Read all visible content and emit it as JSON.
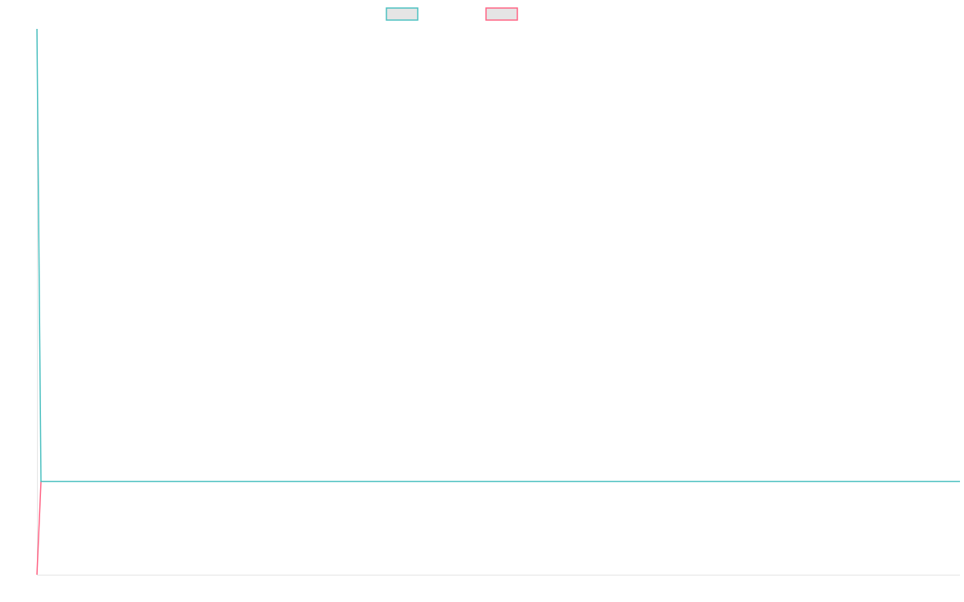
{
  "chart_data": {
    "type": "line",
    "title": "",
    "xlabel": "",
    "ylabel": "",
    "ylim": [
      -20,
      97
    ],
    "grid": false,
    "legend_placement": "top",
    "series": [
      {
        "color": "#4bc0c0",
        "legend_fill": "#e5e5e5",
        "first_value": 97,
        "rest_value": 0
      },
      {
        "color": "#ff6384",
        "legend_fill": "#e5e5e5",
        "first_value": -20,
        "rest_value": 0
      }
    ],
    "points_per_series": 230,
    "axis_color": "#e5e5e5"
  }
}
